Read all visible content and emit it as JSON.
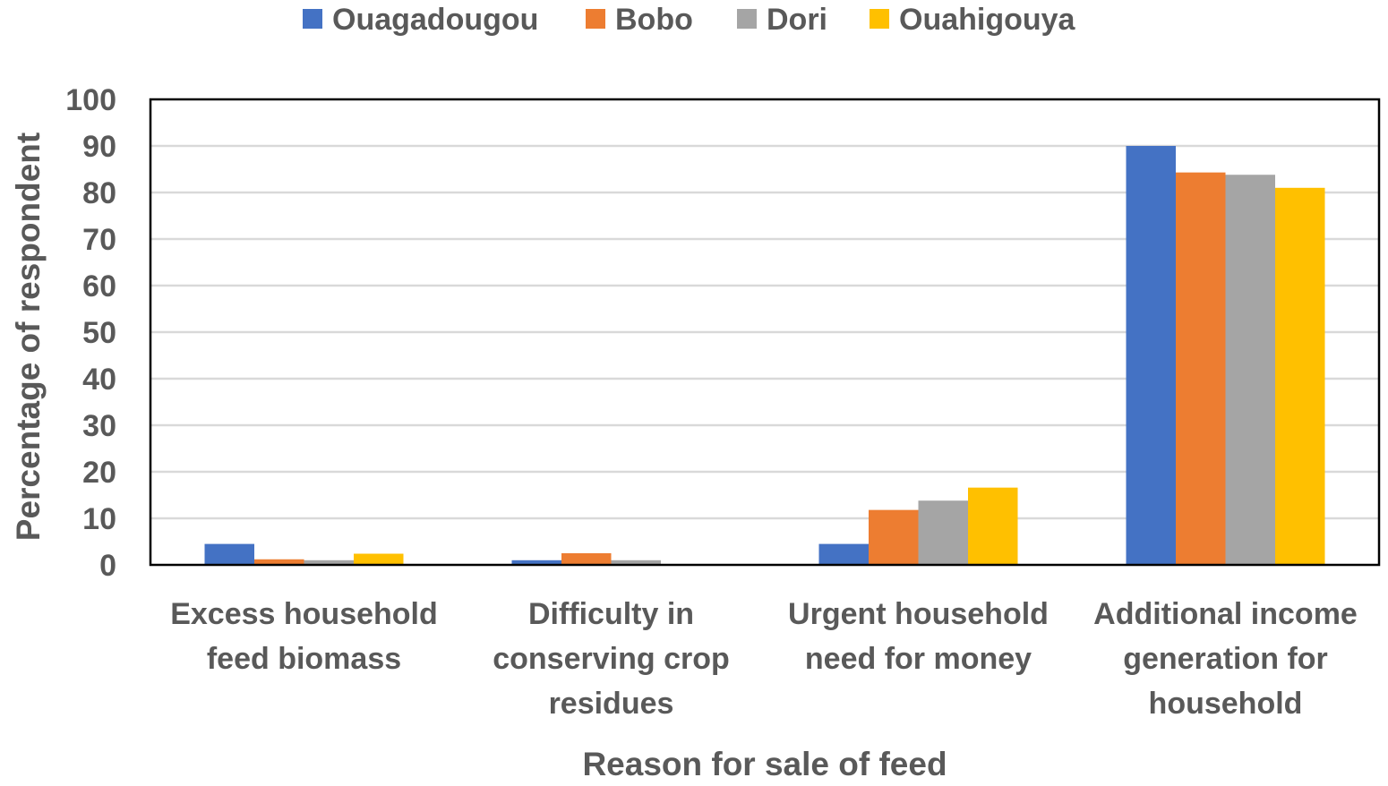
{
  "chart_data": {
    "type": "bar",
    "title": "",
    "xlabel": "Reason for sale of feed",
    "ylabel": "Percentage of respondent",
    "ylim": [
      0,
      100
    ],
    "yticks": [
      0,
      10,
      20,
      30,
      40,
      50,
      60,
      70,
      80,
      90,
      100
    ],
    "grid": true,
    "legend_position": "top",
    "categories": [
      [
        "Excess household",
        "feed biomass"
      ],
      [
        "Difficulty in",
        "conserving crop",
        "residues"
      ],
      [
        "Urgent household",
        "need for money"
      ],
      [
        "Additional income",
        "generation for",
        "household"
      ]
    ],
    "series": [
      {
        "name": "Ouagadougou",
        "color": "#4472C4",
        "values": [
          4.5,
          1.0,
          4.5,
          90.0
        ]
      },
      {
        "name": "Bobo",
        "color": "#ED7D31",
        "values": [
          1.2,
          2.5,
          11.8,
          84.3
        ]
      },
      {
        "name": "Dori",
        "color": "#A5A5A5",
        "values": [
          1.0,
          1.0,
          13.8,
          83.8
        ]
      },
      {
        "name": "Ouahigouya",
        "color": "#FFC000",
        "values": [
          2.4,
          0.0,
          16.6,
          81.0
        ]
      }
    ]
  }
}
